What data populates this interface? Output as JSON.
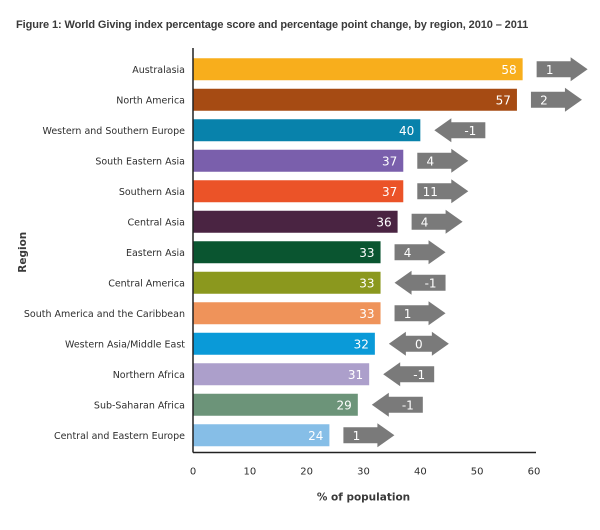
{
  "chart_data": {
    "type": "bar",
    "orientation": "horizontal",
    "title": "Figure 1: World Giving index percentage score and percentage point change, by region, 2010 – 2011",
    "xlabel": "% of population",
    "ylabel": "Region",
    "xlim": [
      0,
      60
    ],
    "xticks": [
      0,
      10,
      20,
      30,
      40,
      50,
      60
    ],
    "grid": false,
    "categories": [
      "Australasia",
      "North America",
      "Western and Southern Europe",
      "South Eastern Asia",
      "Southern Asia",
      "Central Asia",
      "Eastern Asia",
      "Central America",
      "South America and the Caribbean",
      "Western Asia/Middle East",
      "Northern Africa",
      "Sub-Saharan Africa",
      "Central and Eastern Europe"
    ],
    "values": [
      58,
      57,
      40,
      37,
      37,
      36,
      33,
      33,
      33,
      32,
      31,
      29,
      24
    ],
    "changes": [
      1,
      2,
      -1,
      4,
      11,
      4,
      4,
      -1,
      1,
      0,
      -1,
      -1,
      1
    ],
    "colors": [
      "#f8ae1c",
      "#a64b13",
      "#0882ab",
      "#7a5fac",
      "#eb5328",
      "#4a2442",
      "#0a5530",
      "#8b981e",
      "#ef935a",
      "#0a9ad8",
      "#ac9fcb",
      "#6c9479",
      "#86bee7"
    ],
    "arrow_color": "#7a7a7a"
  }
}
